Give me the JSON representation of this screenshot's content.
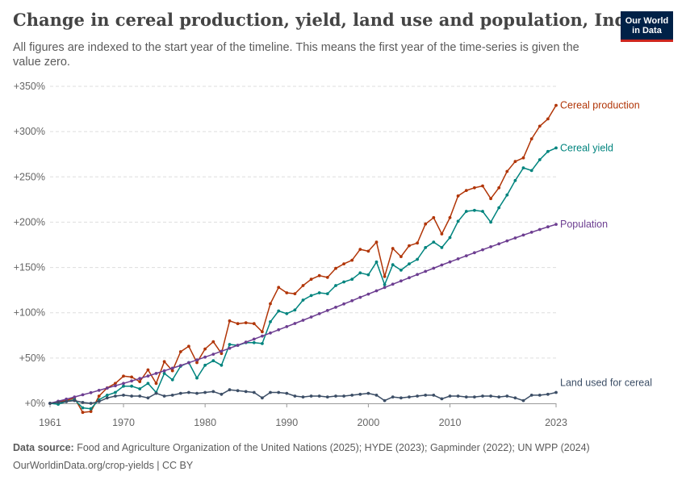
{
  "title": "Change in cereal production, yield, land use and population, India",
  "subtitle": "All figures are indexed to the start year of the timeline. This means the first year of the time-series is given the value zero.",
  "logo": {
    "line1": "Our World",
    "line2": "in Data"
  },
  "footer": {
    "source_label": "Data source:",
    "source_text": "Food and Agriculture Organization of the United Nations (2025); HYDE (2023); Gapminder (2022); UN WPP (2024)",
    "url_text": "OurWorldinData.org/crop-yields | CC BY"
  },
  "chart_data": {
    "type": "line",
    "ylim": [
      0,
      350
    ],
    "xlim": [
      1961,
      2023
    ],
    "y_ticks": [
      {
        "value": 0,
        "label": "+0%"
      },
      {
        "value": 50,
        "label": "+50%"
      },
      {
        "value": 100,
        "label": "+100%"
      },
      {
        "value": 150,
        "label": "+150%"
      },
      {
        "value": 200,
        "label": "+200%"
      },
      {
        "value": 250,
        "label": "+250%"
      },
      {
        "value": 300,
        "label": "+300%"
      },
      {
        "value": 350,
        "label": "+350%"
      }
    ],
    "x_ticks": [
      {
        "value": 1961,
        "label": "1961"
      },
      {
        "value": 1970,
        "label": "1970"
      },
      {
        "value": 1980,
        "label": "1980"
      },
      {
        "value": 1990,
        "label": "1990"
      },
      {
        "value": 2000,
        "label": "2000"
      },
      {
        "value": 2010,
        "label": "2010"
      },
      {
        "value": 2023,
        "label": "2023"
      }
    ],
    "grid": "horizontal dashed",
    "legend": "labels at line ends (right)",
    "years_start": 1961,
    "series": [
      {
        "name": "Cereal production",
        "color": "#b13507",
        "values": [
          0,
          2,
          3,
          6,
          -10,
          -9,
          8,
          17,
          22,
          30,
          29,
          24,
          37,
          22,
          46,
          36,
          57,
          63,
          45,
          60,
          68,
          55,
          91,
          88,
          89,
          88,
          79,
          110,
          128,
          122,
          121,
          130,
          137,
          141,
          139,
          149,
          154,
          158,
          170,
          168,
          178,
          140,
          171,
          162,
          174,
          177,
          198,
          205,
          187,
          205,
          229,
          235,
          238,
          240,
          226,
          238,
          256,
          267,
          271,
          292,
          306,
          314,
          329
        ]
      },
      {
        "name": "Cereal yield",
        "color": "#00847e",
        "values": [
          0,
          -1,
          2,
          4,
          -5,
          -6,
          4,
          9,
          12,
          19,
          19,
          16,
          22,
          12,
          33,
          26,
          41,
          45,
          28,
          42,
          47,
          42,
          65,
          64,
          67,
          67,
          66,
          90,
          102,
          99,
          103,
          114,
          119,
          122,
          121,
          130,
          134,
          137,
          144,
          142,
          156,
          131,
          153,
          147,
          154,
          159,
          172,
          178,
          172,
          183,
          201,
          212,
          213,
          212,
          200,
          216,
          230,
          246,
          260,
          257,
          269,
          278,
          282
        ]
      },
      {
        "name": "Population",
        "color": "#6d3e91",
        "values": [
          0,
          2.3,
          4.6,
          7,
          9.4,
          11.8,
          14.3,
          16.8,
          19.4,
          22,
          24.7,
          27.4,
          30.2,
          33,
          35.9,
          38.8,
          41.8,
          44.8,
          47.9,
          51,
          54.2,
          57.5,
          60.8,
          64.1,
          67.5,
          70.9,
          74.3,
          77.7,
          81.2,
          84.7,
          88.2,
          91.7,
          95.3,
          98.9,
          102.5,
          106.1,
          109.7,
          113.3,
          117,
          120.6,
          124.2,
          127.9,
          131.5,
          135.1,
          138.7,
          142.2,
          145.7,
          149.2,
          152.7,
          156.1,
          159.5,
          162.9,
          166.3,
          169.6,
          172.9,
          176.1,
          179.4,
          182.6,
          185.8,
          188.9,
          191.9,
          194.9,
          197.6
        ]
      },
      {
        "name": "Land used for cereal",
        "color": "#3c4e66",
        "values": [
          0,
          1,
          2,
          3,
          1,
          0,
          2,
          6,
          8,
          9,
          8,
          8,
          6,
          11,
          8,
          9,
          11,
          12,
          11,
          12,
          13,
          10,
          15,
          14,
          13,
          12,
          6,
          12,
          12,
          11,
          8,
          7,
          8,
          8,
          7,
          8,
          8,
          9,
          10,
          11,
          9,
          3,
          7,
          6,
          7,
          8,
          9,
          9,
          5,
          8,
          8,
          7,
          7,
          8,
          8,
          7,
          8,
          6,
          3,
          9,
          9,
          10,
          12
        ]
      }
    ]
  }
}
